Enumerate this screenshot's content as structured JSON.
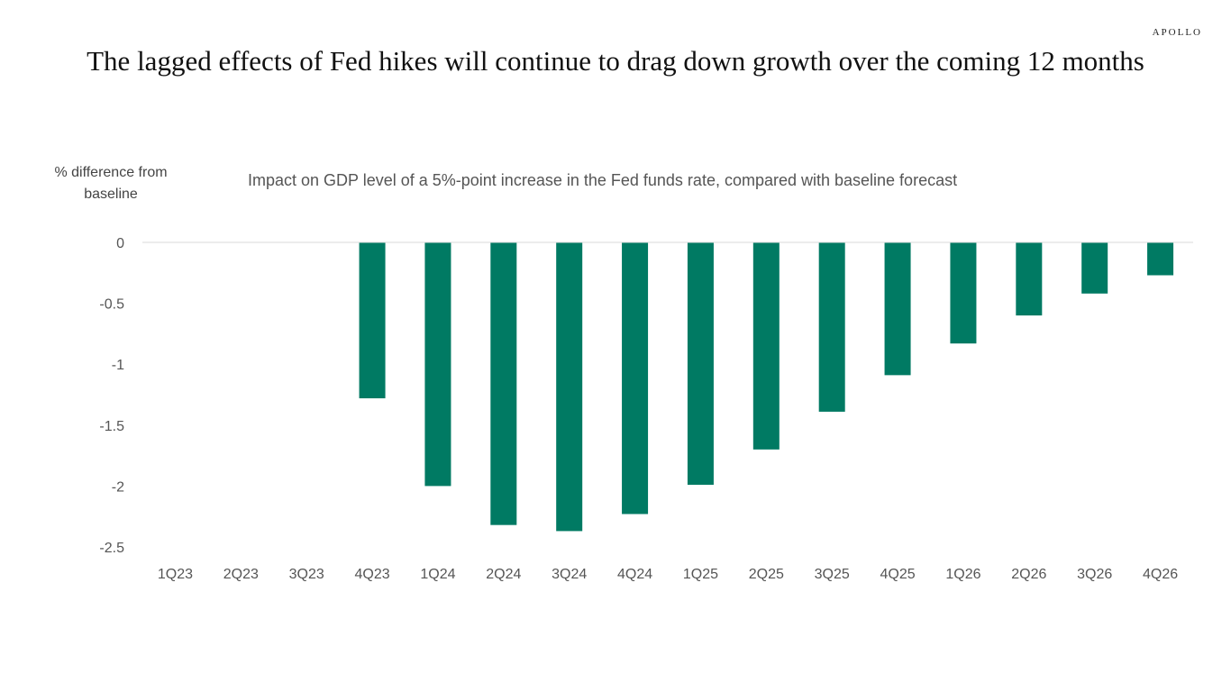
{
  "brand": "APOLLO",
  "colors": {
    "bar": "#007A63",
    "zero_line": "#D9D9D9",
    "text": "#555555"
  },
  "chart_data": {
    "type": "bar",
    "title": "The lagged effects of Fed hikes will continue to drag down growth over the coming 12 months",
    "subtitle": "Impact on GDP level of a 5%-point increase in the Fed funds rate, compared with baseline forecast",
    "ylabel": "% difference from baseline",
    "xlabel": "",
    "categories": [
      "1Q23",
      "2Q23",
      "3Q23",
      "4Q23",
      "1Q24",
      "2Q24",
      "3Q24",
      "4Q24",
      "1Q25",
      "2Q25",
      "3Q25",
      "4Q25",
      "1Q26",
      "2Q26",
      "3Q26",
      "4Q26"
    ],
    "values": [
      0,
      0,
      0,
      -1.28,
      -2.0,
      -2.32,
      -2.37,
      -2.23,
      -1.99,
      -1.7,
      -1.39,
      -1.09,
      -0.83,
      -0.6,
      -0.42,
      -0.27
    ],
    "yticks": [
      0,
      -0.5,
      -1,
      -1.5,
      -2,
      -2.5
    ],
    "ylim": [
      -2.5,
      0
    ],
    "grid": false,
    "legend": "none"
  }
}
